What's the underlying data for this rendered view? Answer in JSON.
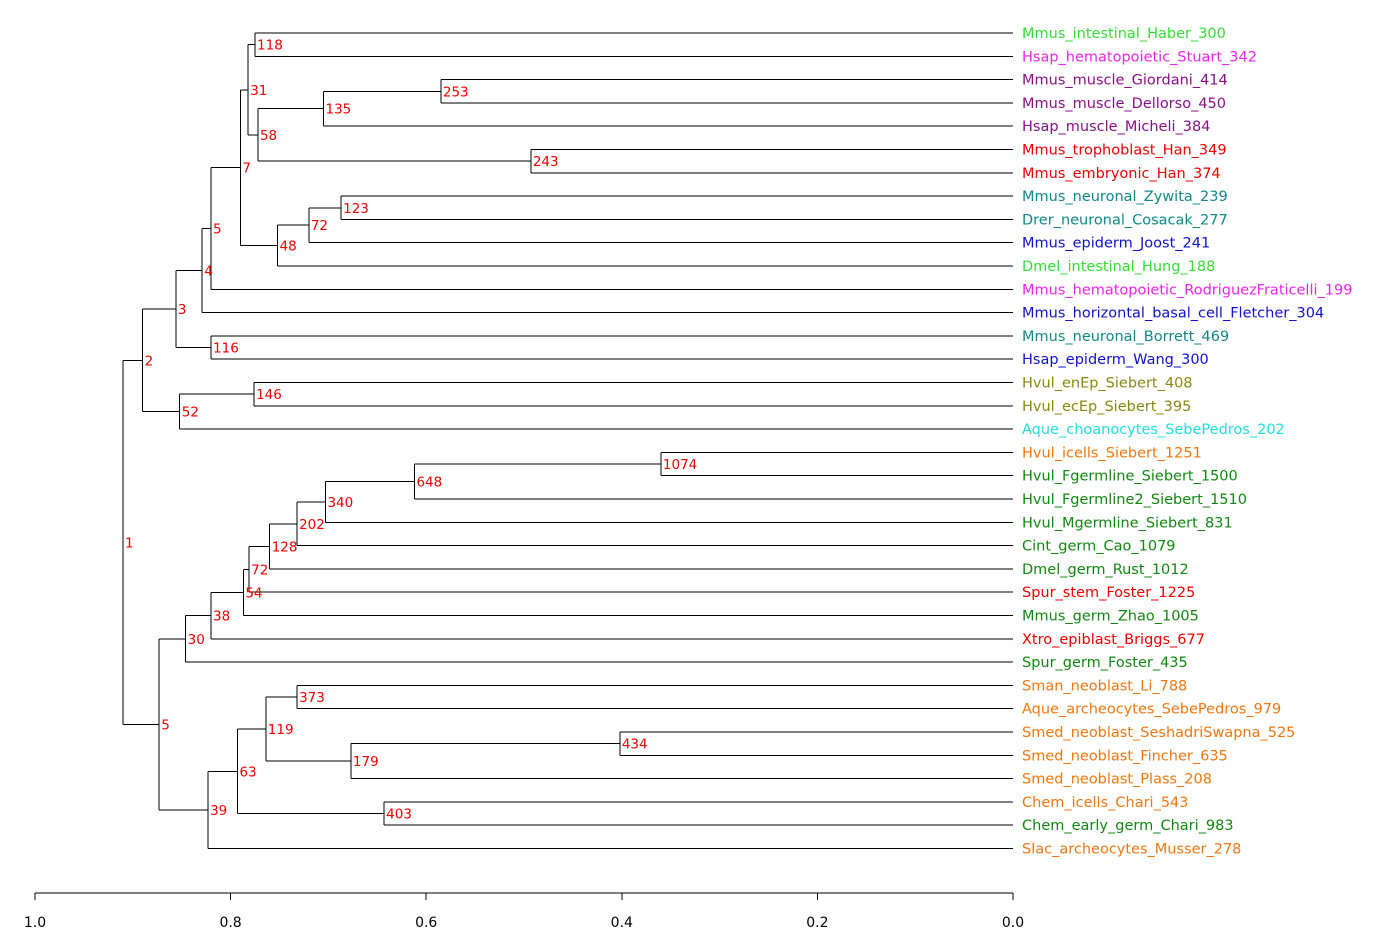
{
  "chart_data": {
    "type": "dendrogram",
    "orientation": "left",
    "x_axis": {
      "range": [
        1.0,
        0.0
      ],
      "ticks": [
        "1.0",
        "0.8",
        "0.6",
        "0.4",
        "0.2",
        "0.0"
      ],
      "tick_values": [
        1.0,
        0.8,
        0.6,
        0.4,
        0.2,
        0.0
      ]
    },
    "node_label_color": "#ee0000",
    "leaves": [
      {
        "label": "Mmus_intestinal_Haber_300",
        "color": "#33dd33"
      },
      {
        "label": "Hsap_hematopoietic_Stuart_342",
        "color": "#ee22ee"
      },
      {
        "label": "Mmus_muscle_Giordani_414",
        "color": "#881188"
      },
      {
        "label": "Mmus_muscle_Dellorso_450",
        "color": "#881188"
      },
      {
        "label": "Hsap_muscle_Micheli_384",
        "color": "#881188"
      },
      {
        "label": "Mmus_trophoblast_Han_349",
        "color": "#ee0000"
      },
      {
        "label": "Mmus_embryonic_Han_374",
        "color": "#ee0000"
      },
      {
        "label": "Mmus_neuronal_Zywita_239",
        "color": "#118888"
      },
      {
        "label": "Drer_neuronal_Cosacak_277",
        "color": "#118888"
      },
      {
        "label": "Mmus_epiderm_Joost_241",
        "color": "#1111cc"
      },
      {
        "label": "Dmel_intestinal_Hung_188",
        "color": "#33dd33"
      },
      {
        "label": "Mmus_hematopoietic_RodriguezFraticelli_199",
        "color": "#ee22ee"
      },
      {
        "label": "Mmus_horizontal_basal_cell_Fletcher_304",
        "color": "#1111cc"
      },
      {
        "label": "Mmus_neuronal_Borrett_469",
        "color": "#118888"
      },
      {
        "label": "Hsap_epiderm_Wang_300",
        "color": "#1111cc"
      },
      {
        "label": "Hvul_enEp_Siebert_408",
        "color": "#888811"
      },
      {
        "label": "Hvul_ecEp_Siebert_395",
        "color": "#888811"
      },
      {
        "label": "Aque_choanocytes_SebePedros_202",
        "color": "#22dddd"
      },
      {
        "label": "Hvul_icells_Siebert_1251",
        "color": "#ee7711"
      },
      {
        "label": "Hvul_Fgermline_Siebert_1500",
        "color": "#118811"
      },
      {
        "label": "Hvul_Fgermline2_Siebert_1510",
        "color": "#118811"
      },
      {
        "label": "Hvul_Mgermline_Siebert_831",
        "color": "#118811"
      },
      {
        "label": "Cint_germ_Cao_1079",
        "color": "#118811"
      },
      {
        "label": "Dmel_germ_Rust_1012",
        "color": "#118811"
      },
      {
        "label": "Spur_stem_Foster_1225",
        "color": "#ee0000"
      },
      {
        "label": "Mmus_germ_Zhao_1005",
        "color": "#118811"
      },
      {
        "label": "Xtro_epiblast_Briggs_677",
        "color": "#ee0000"
      },
      {
        "label": "Spur_germ_Foster_435",
        "color": "#118811"
      },
      {
        "label": "Sman_neoblast_Li_788",
        "color": "#ee7711"
      },
      {
        "label": "Aque_archeocytes_SebePedros_979",
        "color": "#ee7711"
      },
      {
        "label": "Smed_neoblast_SeshadriSwapna_525",
        "color": "#ee7711"
      },
      {
        "label": "Smed_neoblast_Fincher_635",
        "color": "#ee7711"
      },
      {
        "label": "Smed_neoblast_Plass_208",
        "color": "#ee7711"
      },
      {
        "label": "Chem_icells_Chari_543",
        "color": "#ee7711"
      },
      {
        "label": "Chem_early_germ_Chari_983",
        "color": "#118811"
      },
      {
        "label": "Slac_archeocytes_Musser_278",
        "color": "#ee7711"
      }
    ],
    "nodes": [
      {
        "id": "n118",
        "label": "118",
        "height": 0.775,
        "children": [
          "L0",
          "L1"
        ]
      },
      {
        "id": "n253",
        "label": "253",
        "height": 0.585,
        "children": [
          "L2",
          "L3"
        ]
      },
      {
        "id": "n135",
        "label": "135",
        "height": 0.705,
        "children": [
          "n253",
          "L4"
        ]
      },
      {
        "id": "n243",
        "label": "243",
        "height": 0.493,
        "children": [
          "L5",
          "L6"
        ]
      },
      {
        "id": "n58",
        "label": "58",
        "height": 0.772,
        "children": [
          "n135",
          "n243"
        ]
      },
      {
        "id": "n31",
        "label": "31",
        "height": 0.782,
        "children": [
          "n118",
          "n58"
        ]
      },
      {
        "id": "n123",
        "label": "123",
        "height": 0.687,
        "children": [
          "L7",
          "L8"
        ]
      },
      {
        "id": "n72a",
        "label": "72",
        "height": 0.72,
        "children": [
          "n123",
          "L9"
        ]
      },
      {
        "id": "n48",
        "label": "48",
        "height": 0.752,
        "children": [
          "n72a",
          "L10"
        ]
      },
      {
        "id": "n7",
        "label": "7",
        "height": 0.79,
        "children": [
          "n31",
          "n48"
        ]
      },
      {
        "id": "n5a",
        "label": "5",
        "height": 0.82,
        "children": [
          "n7",
          "L11"
        ]
      },
      {
        "id": "n4",
        "label": "4",
        "height": 0.829,
        "children": [
          "n5a",
          "L12"
        ]
      },
      {
        "id": "n116",
        "label": "116",
        "height": 0.82,
        "children": [
          "L13",
          "L14"
        ]
      },
      {
        "id": "n3",
        "label": "3",
        "height": 0.856,
        "children": [
          "n4",
          "n116"
        ]
      },
      {
        "id": "n146",
        "label": "146",
        "height": 0.776,
        "children": [
          "L15",
          "L16"
        ]
      },
      {
        "id": "n52",
        "label": "52",
        "height": 0.852,
        "children": [
          "n146",
          "L17"
        ]
      },
      {
        "id": "n2",
        "label": "2",
        "height": 0.89,
        "children": [
          "n3",
          "n52"
        ]
      },
      {
        "id": "n1074",
        "label": "1074",
        "height": 0.36,
        "children": [
          "L18",
          "L19"
        ]
      },
      {
        "id": "n648",
        "label": "648",
        "height": 0.612,
        "children": [
          "n1074",
          "L20"
        ]
      },
      {
        "id": "n340",
        "label": "340",
        "height": 0.703,
        "children": [
          "n648",
          "L21"
        ]
      },
      {
        "id": "n202",
        "label": "202",
        "height": 0.732,
        "children": [
          "n340",
          "L22"
        ]
      },
      {
        "id": "n128",
        "label": "128",
        "height": 0.76,
        "children": [
          "n202",
          "L23"
        ]
      },
      {
        "id": "n72b",
        "label": "72",
        "height": 0.781,
        "children": [
          "n128",
          "L24"
        ]
      },
      {
        "id": "n54",
        "label": "54",
        "height": 0.787,
        "children": [
          "n72b",
          "L25"
        ]
      },
      {
        "id": "n38",
        "label": "38",
        "height": 0.82,
        "children": [
          "n54",
          "L26"
        ]
      },
      {
        "id": "n30",
        "label": "30",
        "height": 0.846,
        "children": [
          "n38",
          "L27"
        ]
      },
      {
        "id": "n373",
        "label": "373",
        "height": 0.732,
        "children": [
          "L28",
          "L29"
        ]
      },
      {
        "id": "n434",
        "label": "434",
        "height": 0.402,
        "children": [
          "L30",
          "L31"
        ]
      },
      {
        "id": "n179",
        "label": "179",
        "height": 0.677,
        "children": [
          "n434",
          "L32"
        ]
      },
      {
        "id": "n119",
        "label": "119",
        "height": 0.764,
        "children": [
          "n373",
          "n179"
        ]
      },
      {
        "id": "n403",
        "label": "403",
        "height": 0.643,
        "children": [
          "L33",
          "L34"
        ]
      },
      {
        "id": "n63",
        "label": "63",
        "height": 0.793,
        "children": [
          "n119",
          "n403"
        ]
      },
      {
        "id": "n39",
        "label": "39",
        "height": 0.823,
        "children": [
          "n63",
          "L35"
        ]
      },
      {
        "id": "n5b",
        "label": "5",
        "height": 0.873,
        "children": [
          "n30",
          "n39"
        ]
      },
      {
        "id": "n1",
        "label": "1",
        "height": 0.91,
        "children": [
          "n2",
          "n5b"
        ]
      }
    ]
  }
}
